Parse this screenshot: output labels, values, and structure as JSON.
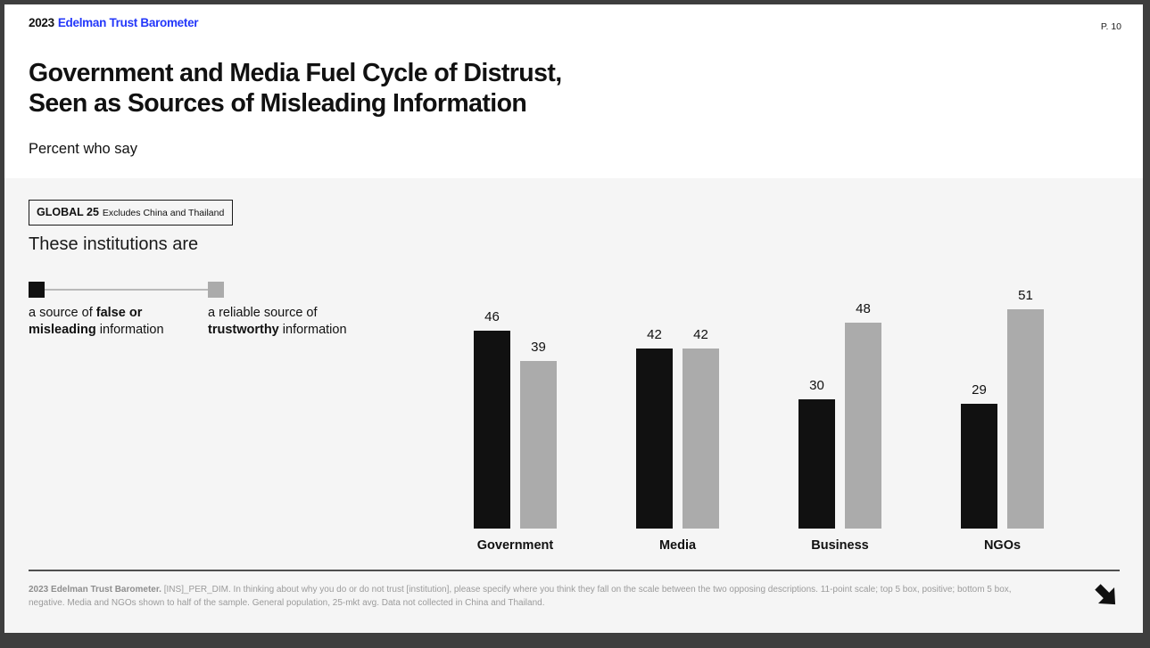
{
  "header": {
    "brand_year": "2023",
    "brand_name": "Edelman Trust Barometer",
    "page_number": "P. 10",
    "title_line1": "Government and Media Fuel Cycle of Distrust,",
    "title_line2": "Seen as Sources of Misleading Information",
    "subtitle": "Percent who say"
  },
  "body": {
    "global_badge": {
      "bold": "GLOBAL 25",
      "rest": "Excludes China and Thailand"
    },
    "lead_in": "These institutions are",
    "scale_legend": {
      "left": {
        "prefix": "a source of ",
        "bold": "false or misleading",
        "suffix": " information"
      },
      "right": {
        "prefix": "a reliable source of ",
        "bold": "trustworthy",
        "suffix": " information"
      }
    }
  },
  "chart_data": {
    "type": "bar",
    "categories": [
      "Government",
      "Media",
      "Business",
      "NGOs"
    ],
    "series": [
      {
        "name": "a source of false or misleading information",
        "color": "#111111",
        "values": [
          46,
          42,
          30,
          29
        ]
      },
      {
        "name": "a reliable source of trustworthy information",
        "color": "#ababab",
        "values": [
          39,
          42,
          48,
          51
        ]
      }
    ],
    "ylim": [
      0,
      60
    ],
    "value_labels": true,
    "grid": false,
    "legend_position": "left-scale"
  },
  "footer": {
    "bold": "2023 Edelman Trust Barometer.",
    "text": " [INS]_PER_DIM. In thinking about why you do or do not trust [institution], please specify where you think they fall on the scale between the two opposing descriptions. 11-point scale; top 5 box, positive; bottom 5 box, negative. Media and NGOs shown to half of the sample. General population, 25-mkt avg. Data not collected in China and Thailand."
  },
  "colors": {
    "brand_blue": "#2337fa",
    "bar_negative": "#111111",
    "bar_positive": "#ababab",
    "body_background": "#f5f5f5",
    "header_background": "#ffffff",
    "frame": "#3e3e3e",
    "footnote_gray": "#9b9b9b"
  },
  "icons": {
    "next_arrow": "arrow-down-right"
  }
}
